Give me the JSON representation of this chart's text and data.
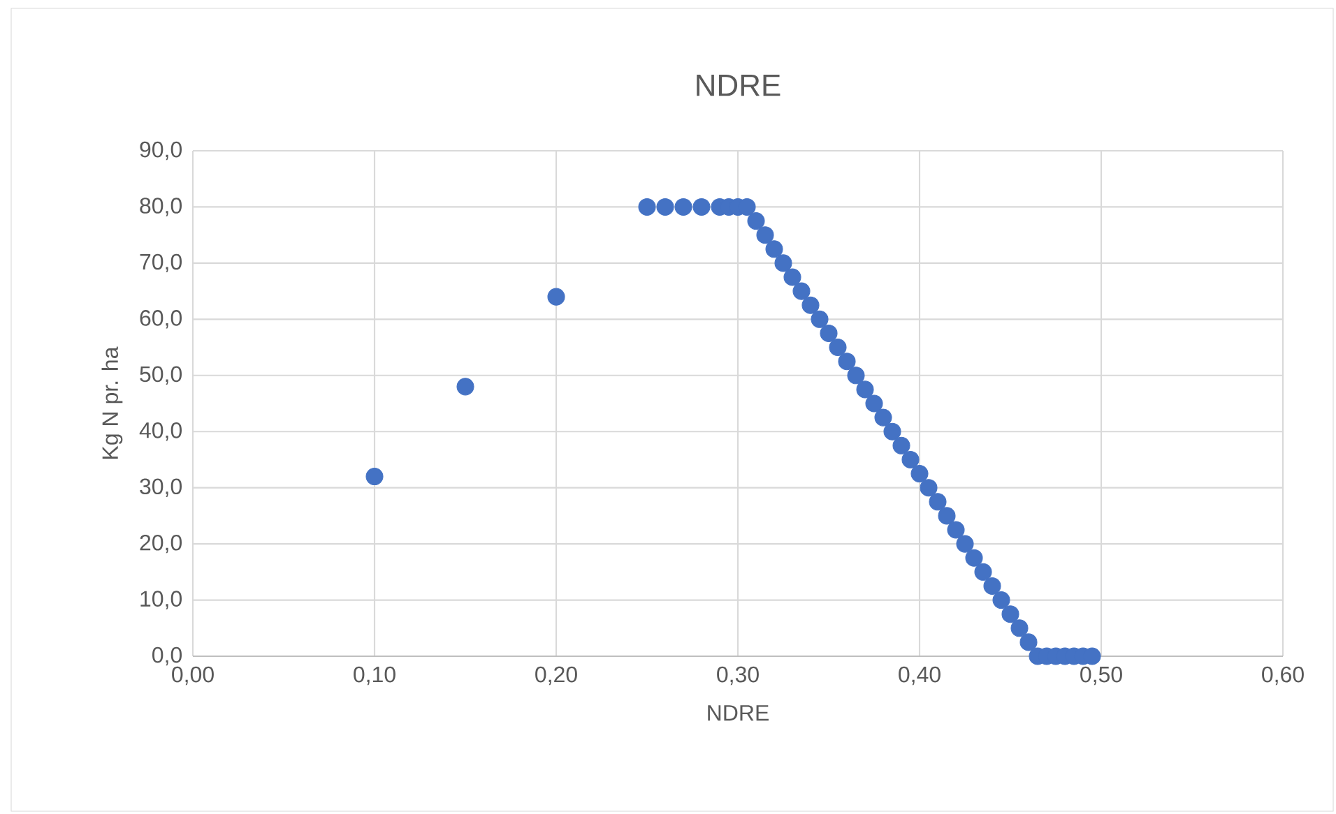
{
  "chart_data": {
    "type": "scatter",
    "title": "NDRE",
    "xlabel": "NDRE",
    "ylabel": "Kg N pr. ha",
    "xlim": [
      0,
      0.6
    ],
    "ylim": [
      0,
      90
    ],
    "xticks": [
      {
        "value": 0,
        "label": "0,00"
      },
      {
        "value": 0.1,
        "label": "0,10"
      },
      {
        "value": 0.2,
        "label": "0,20"
      },
      {
        "value": 0.3,
        "label": "0,30"
      },
      {
        "value": 0.4,
        "label": "0,40"
      },
      {
        "value": 0.5,
        "label": "0,50"
      },
      {
        "value": 0.6,
        "label": "0,60"
      }
    ],
    "yticks": [
      {
        "value": 0,
        "label": "0,0"
      },
      {
        "value": 10,
        "label": "10,0"
      },
      {
        "value": 20,
        "label": "20,0"
      },
      {
        "value": 30,
        "label": "30,0"
      },
      {
        "value": 40,
        "label": "40,0"
      },
      {
        "value": 50,
        "label": "50,0"
      },
      {
        "value": 60,
        "label": "60,0"
      },
      {
        "value": 70,
        "label": "70,0"
      },
      {
        "value": 80,
        "label": "80,0"
      },
      {
        "value": 90,
        "label": "90,0"
      }
    ],
    "grid": true,
    "marker": "circle",
    "color": "#4472c4",
    "x": [
      0.1,
      0.15,
      0.2,
      0.25,
      0.26,
      0.27,
      0.28,
      0.29,
      0.295,
      0.3,
      0.305,
      0.31,
      0.315,
      0.32,
      0.325,
      0.33,
      0.335,
      0.34,
      0.345,
      0.35,
      0.355,
      0.36,
      0.365,
      0.37,
      0.375,
      0.38,
      0.385,
      0.39,
      0.395,
      0.4,
      0.405,
      0.41,
      0.415,
      0.42,
      0.425,
      0.43,
      0.435,
      0.44,
      0.445,
      0.45,
      0.455,
      0.46,
      0.465,
      0.47,
      0.475,
      0.48,
      0.485,
      0.49,
      0.495
    ],
    "values": [
      32,
      48,
      64,
      80,
      80,
      80,
      80,
      80,
      80,
      80,
      80,
      77.5,
      75,
      72.5,
      70,
      67.5,
      65,
      62.5,
      60,
      57.5,
      55,
      52.5,
      50,
      47.5,
      45,
      42.5,
      40,
      37.5,
      35,
      32.5,
      30,
      27.5,
      25,
      22.5,
      20,
      17.5,
      15,
      12.5,
      10,
      7.5,
      5,
      2.5,
      0,
      0,
      0,
      0,
      0,
      0,
      0
    ]
  }
}
